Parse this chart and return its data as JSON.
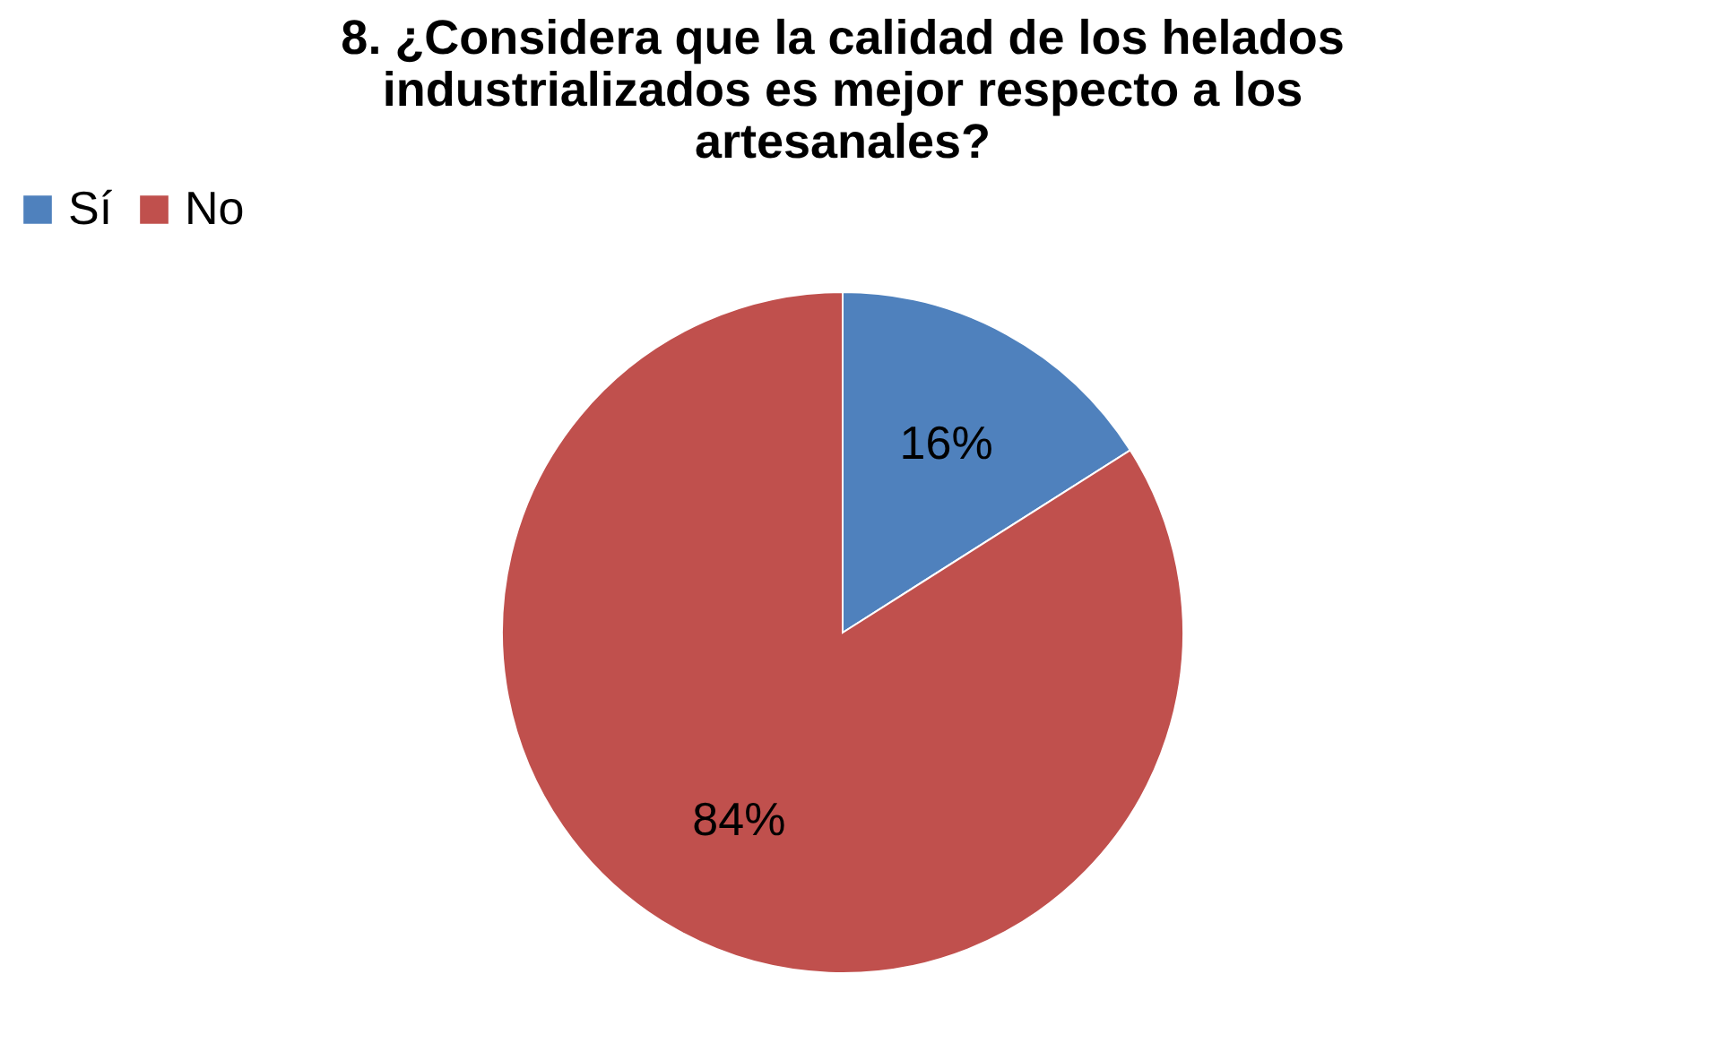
{
  "chart_data": {
    "type": "pie",
    "title": "8. ¿Considera que la calidad de los helados industrializados es mejor respecto a los artesanales?",
    "categories": [
      "Sí",
      "No"
    ],
    "values": [
      16,
      84
    ],
    "colors": [
      "#4f81bd",
      "#c0504d"
    ],
    "value_labels": [
      "16%",
      "84%"
    ],
    "legend": "top"
  }
}
